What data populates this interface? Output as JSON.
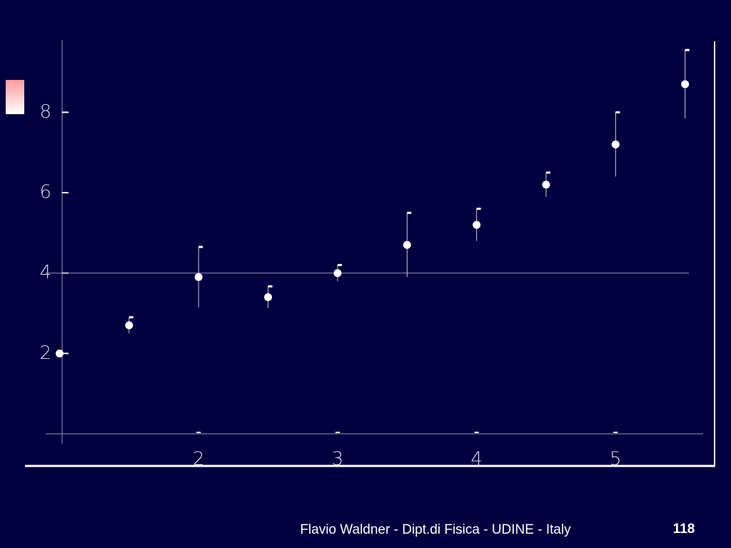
{
  "chart_data": {
    "type": "scatter",
    "x": [
      1,
      1.5,
      2,
      2.5,
      3,
      3.5,
      4,
      4.5,
      5,
      5.5
    ],
    "values": [
      2.0,
      2.7,
      3.9,
      3.4,
      4.0,
      4.7,
      5.2,
      6.2,
      7.2,
      8.7
    ],
    "errors": [
      0,
      0.2,
      0.75,
      0.27,
      0.2,
      0.8,
      0.4,
      0.3,
      0.8,
      0.85
    ],
    "color": "#ffffff",
    "reference_line": 4,
    "xlim": [
      0.9,
      5.63
    ],
    "ylim": [
      0,
      9.8
    ],
    "xticks": [
      2,
      3,
      4,
      5
    ],
    "yticks": [
      2,
      4,
      6,
      8
    ]
  },
  "footer": {
    "text": "Flavio Waldner - Dipt.di Fisica - UDINE - Italy",
    "page": "118"
  }
}
